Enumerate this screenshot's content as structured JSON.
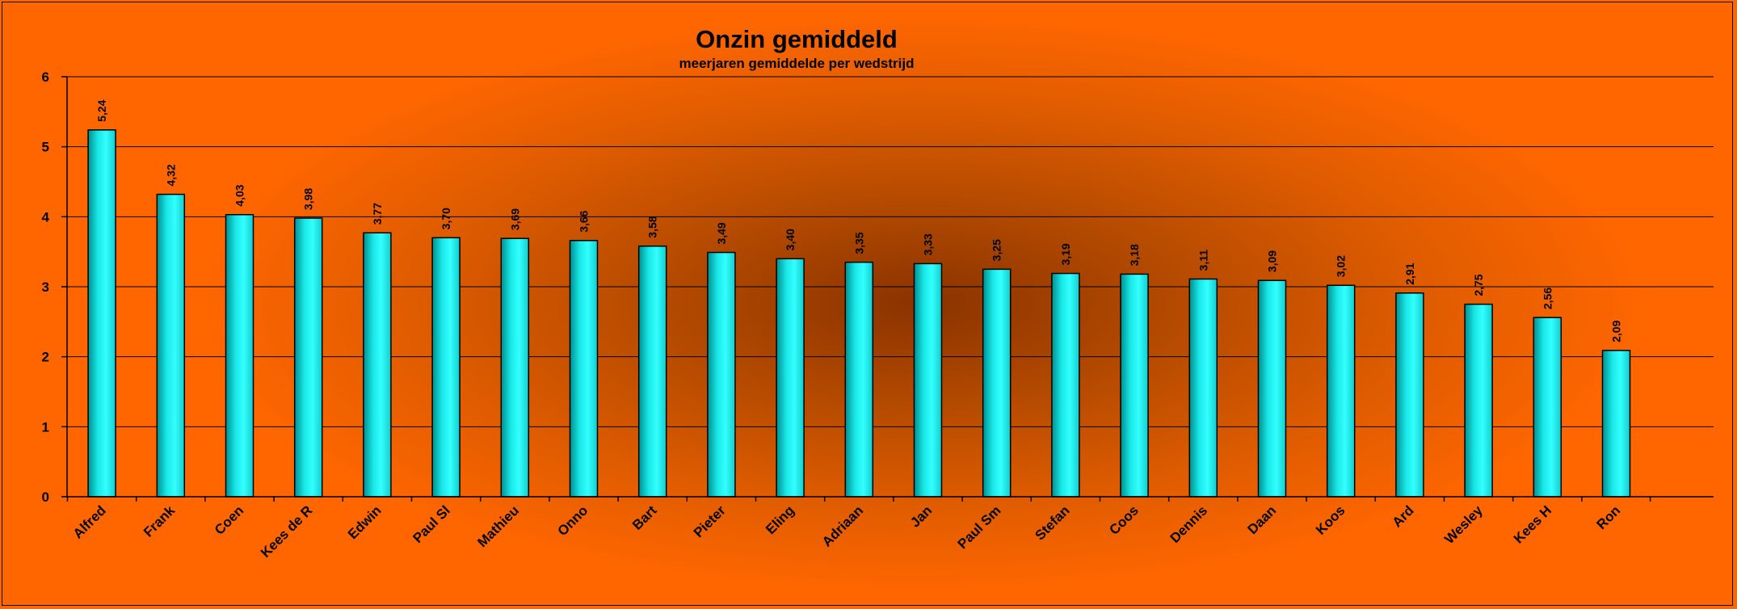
{
  "chart_data": {
    "type": "bar",
    "title": "Onzin gemiddeld",
    "subtitle": "meerjaren gemiddelde per wedstrijd",
    "xlabel": "",
    "ylabel": "",
    "ylim": [
      0,
      6
    ],
    "yticks": [
      "0",
      "1",
      "2",
      "3",
      "4",
      "5",
      "6"
    ],
    "grid": true,
    "legend": "none",
    "categories": [
      "Alfred",
      "Frank",
      "Coen",
      "Kees de R",
      "Edwin",
      "Paul Sl",
      "Mathieu",
      "Onno",
      "Bart",
      "Pieter",
      "Eling",
      "Adriaan",
      "Jan",
      "Paul Sm",
      "Stefan",
      "Coos",
      "Dennis",
      "Daan",
      "Koos",
      "Ard",
      "Wesley",
      "Kees H",
      "Ron"
    ],
    "values": [
      5.24,
      4.32,
      4.03,
      3.98,
      3.77,
      3.7,
      3.69,
      3.66,
      3.58,
      3.49,
      3.4,
      3.35,
      3.33,
      3.25,
      3.19,
      3.18,
      3.11,
      3.09,
      3.02,
      2.91,
      2.75,
      2.56,
      2.09
    ],
    "data_labels": [
      "5,24",
      "4,32",
      "4,03",
      "3,98",
      "3,77",
      "3,70",
      "3,69",
      "3,66",
      "3,58",
      "3,49",
      "3,40",
      "3,35",
      "3,33",
      "3,25",
      "3,19",
      "3,18",
      "3,11",
      "3,09",
      "3,02",
      "2,91",
      "2,75",
      "2,56",
      "2,09"
    ],
    "colors": {
      "background": "#ff6600",
      "plot_center": "#8a3300",
      "bar_light": "#33ffff",
      "bar_dark": "#008f8f"
    }
  }
}
